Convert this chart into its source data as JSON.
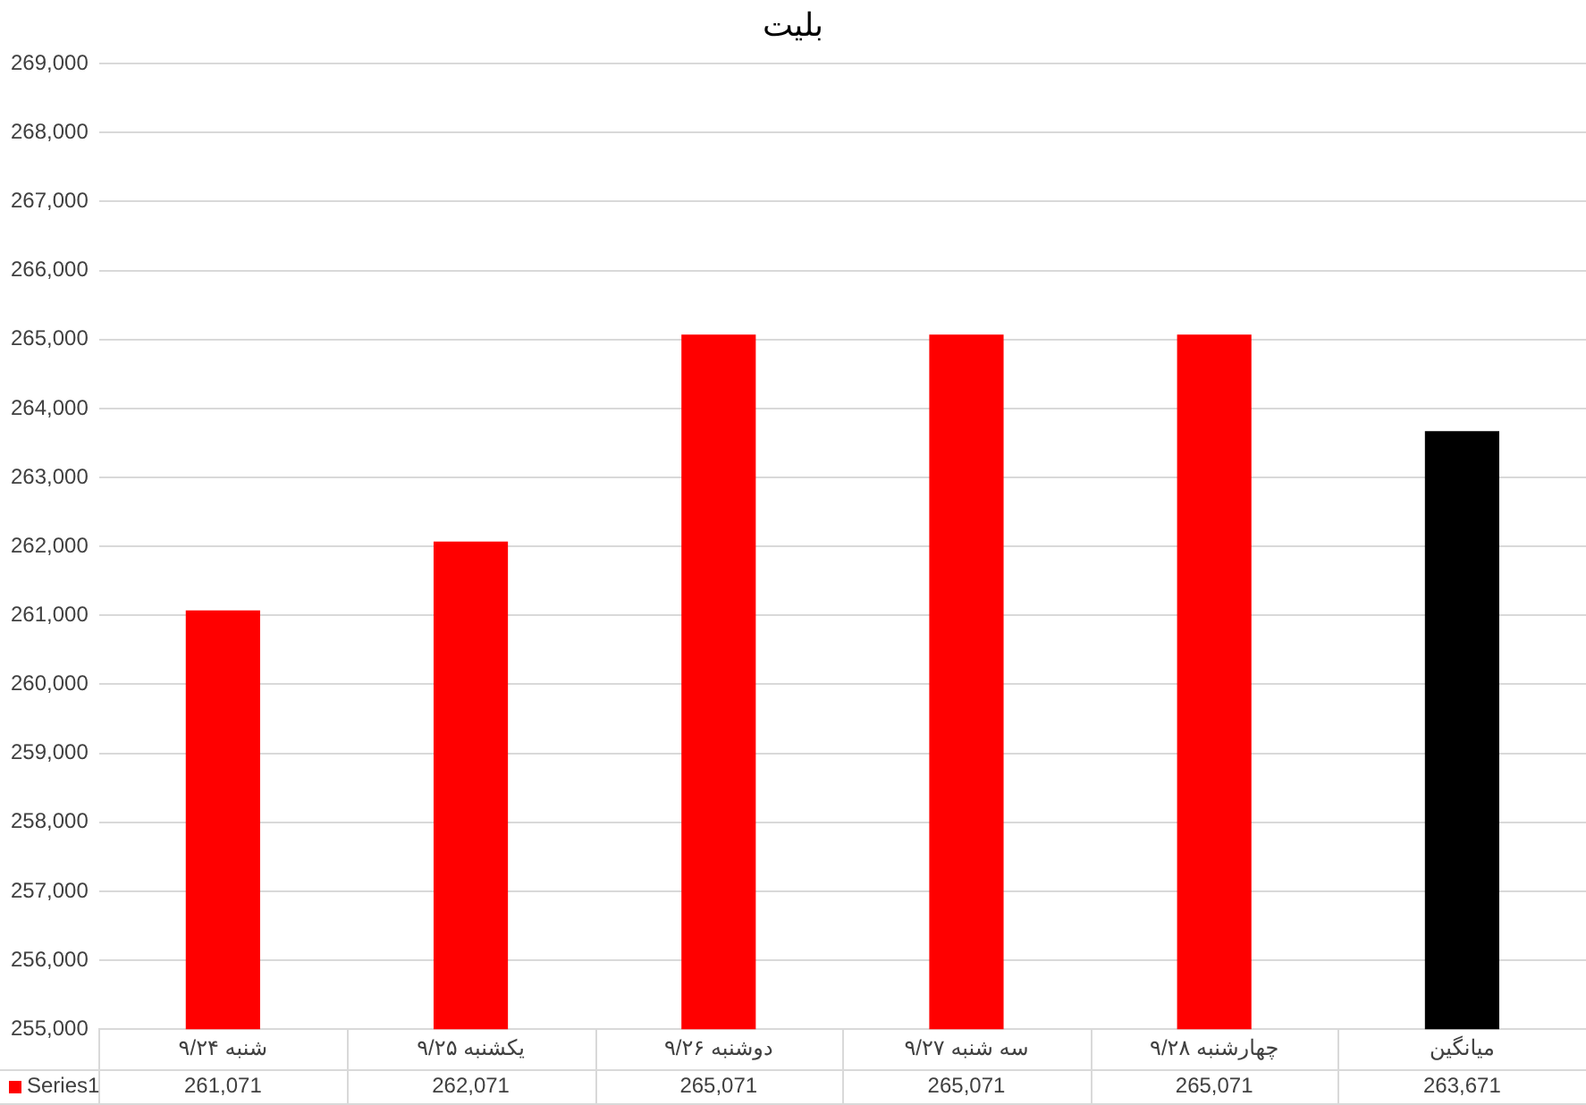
{
  "chart_data": {
    "type": "bar",
    "title": "بلیت",
    "categories": [
      "شنبه ۹/۲۴",
      "یکشنبه ۹/۲۵",
      "دوشنبه ۹/۲۶",
      "سه شنبه ۹/۲۷",
      "چهارشنبه ۹/۲۸",
      "میانگین"
    ],
    "series": [
      {
        "name": "Series1",
        "color": "#ff0000",
        "colors": [
          "#ff0000",
          "#ff0000",
          "#ff0000",
          "#ff0000",
          "#ff0000",
          "#000000"
        ],
        "values": [
          261071,
          262071,
          265071,
          265071,
          265071,
          263671
        ],
        "value_labels": [
          "261,071",
          "262,071",
          "265,071",
          "265,071",
          "265,071",
          "263,671"
        ]
      }
    ],
    "ylim": [
      255000,
      269000
    ],
    "yticks": [
      {
        "value": 255000,
        "label": "255,000"
      },
      {
        "value": 256000,
        "label": "256,000"
      },
      {
        "value": 257000,
        "label": "257,000"
      },
      {
        "value": 258000,
        "label": "258,000"
      },
      {
        "value": 259000,
        "label": "259,000"
      },
      {
        "value": 260000,
        "label": "260,000"
      },
      {
        "value": 261000,
        "label": "261,000"
      },
      {
        "value": 262000,
        "label": "262,000"
      },
      {
        "value": 263000,
        "label": "263,000"
      },
      {
        "value": 264000,
        "label": "264,000"
      },
      {
        "value": 265000,
        "label": "265,000"
      },
      {
        "value": 266000,
        "label": "266,000"
      },
      {
        "value": 267000,
        "label": "267,000"
      },
      {
        "value": 268000,
        "label": "268,000"
      },
      {
        "value": 269000,
        "label": "269,000"
      }
    ],
    "grid": "y",
    "legend": "bottom"
  }
}
